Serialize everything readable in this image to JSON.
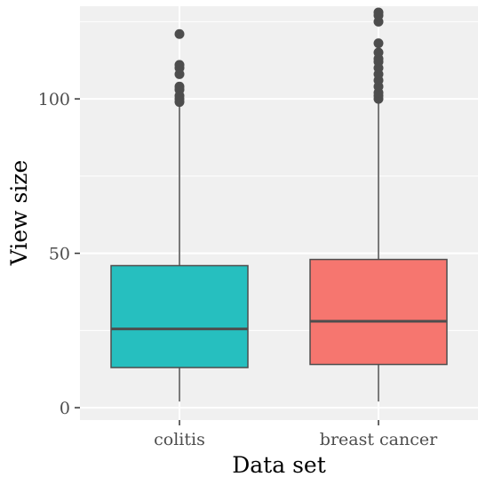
{
  "chart_data": {
    "type": "box",
    "title": "",
    "xlabel": "Data set",
    "ylabel": "View size",
    "ylim": [
      -4,
      130
    ],
    "yticks": [
      0,
      50,
      100
    ],
    "grid": true,
    "legend": "none",
    "panel_background": "#f0f0f0",
    "categories": [
      "colitis",
      "breast cancer"
    ],
    "boxes": [
      {
        "category": "colitis",
        "color": "#26bfbf",
        "whisker_low": 2,
        "q1": 13,
        "median": 25.5,
        "q3": 46,
        "whisker_high": 98,
        "outliers": [
          99,
          100,
          101,
          103,
          104,
          108,
          110,
          111,
          121
        ]
      },
      {
        "category": "breast cancer",
        "color": "#f6766f",
        "whisker_low": 2,
        "q1": 14,
        "median": 28,
        "q3": 48,
        "whisker_high": 99,
        "outliers": [
          100,
          101,
          102,
          104,
          106,
          108,
          110,
          112,
          113,
          115,
          118,
          125,
          127,
          128
        ]
      }
    ]
  }
}
